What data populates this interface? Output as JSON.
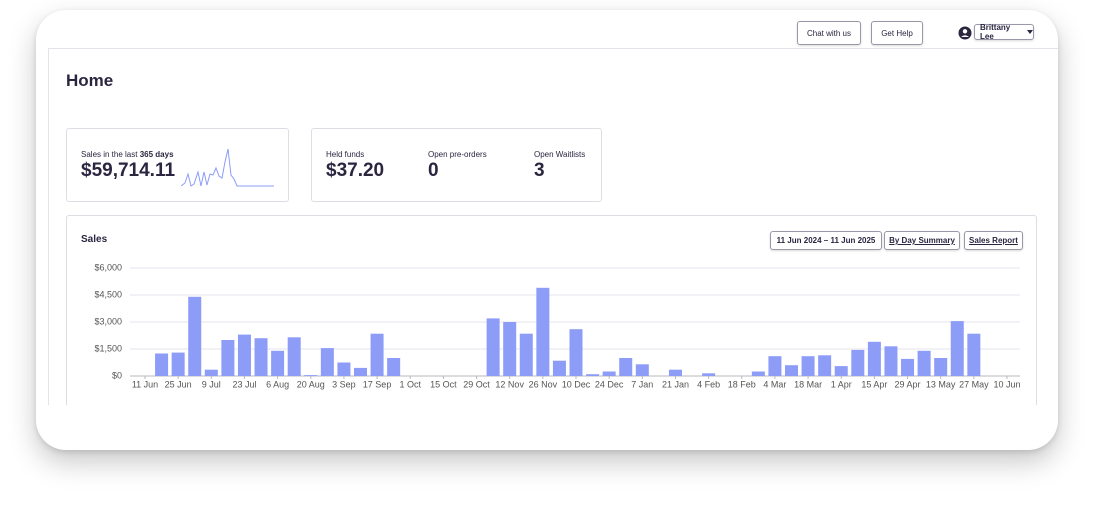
{
  "header": {
    "buttons": [
      "Chat with us",
      "Get Help"
    ],
    "user": "Brittany Lee"
  },
  "title": "Home",
  "summary": {
    "sales": {
      "label_prefix": "Sales in the last",
      "label_period": "365 days",
      "value": "$59,714.11"
    },
    "held_funds": {
      "label": "Held funds",
      "value": "$37.20"
    },
    "open_preorders": {
      "label": "Open pre-orders",
      "value": 0
    },
    "open_waitlists": {
      "label": "Open Waitlists",
      "value": 3
    }
  },
  "sales_panel": {
    "controls": [
      "11 Jun 2024 – 11 Jun 2025",
      "By Day Summary",
      "Sales Report"
    ]
  },
  "chart_data": {
    "type": "bar",
    "title": "Sales",
    "categories": [
      "11 Jun",
      null,
      "25 Jun",
      null,
      "9 Jul",
      null,
      "23 Jul",
      null,
      "6 Aug",
      null,
      "20 Aug",
      null,
      "3 Sep",
      null,
      "17 Sep",
      null,
      "1 Oct",
      null,
      "15 Oct",
      null,
      "29 Oct",
      null,
      "12 Nov",
      null,
      "26 Nov",
      null,
      "10 Dec",
      null,
      "24 Dec",
      null,
      "7 Jan",
      null,
      "21 Jan",
      null,
      "4 Feb",
      null,
      "18 Feb",
      null,
      "4 Mar",
      null,
      "18 Mar",
      null,
      "1 Apr",
      null,
      "15 Apr",
      null,
      "29 Apr",
      null,
      "13 May",
      null,
      "27 May",
      null,
      "10 Jun"
    ],
    "values": [
      0,
      1250,
      1300,
      4400,
      350,
      2000,
      2300,
      2100,
      1400,
      2150,
      50,
      1550,
      750,
      450,
      2350,
      1000,
      0,
      0,
      0,
      0,
      0,
      3200,
      3000,
      2350,
      4900,
      850,
      2600,
      100,
      250,
      1000,
      650,
      0,
      350,
      0,
      150,
      0,
      0,
      250,
      1100,
      600,
      1100,
      1150,
      550,
      1450,
      1900,
      1650,
      950,
      1400,
      1000,
      3050,
      2350,
      0,
      0
    ],
    "color": "#8c9cf7",
    "ylim": [
      0,
      6000
    ],
    "yticks": [
      {
        "value": 0,
        "label": "$0"
      },
      {
        "value": 1500,
        "label": "$1,500"
      },
      {
        "value": 3000,
        "label": "$3,000"
      },
      {
        "value": 4500,
        "label": "$4,500"
      },
      {
        "value": 6000,
        "label": "$6,000"
      }
    ],
    "grid": true
  }
}
